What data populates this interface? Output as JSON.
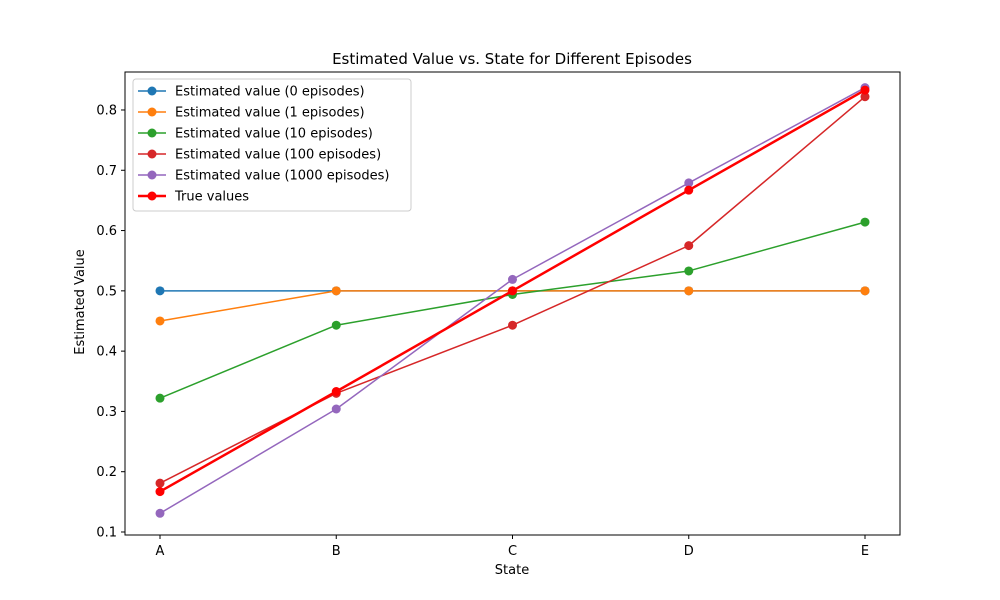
{
  "chart_data": {
    "type": "line",
    "title": "Estimated Value vs. State for Different Episodes",
    "xlabel": "State",
    "ylabel": "Estimated Value",
    "categories": [
      "A",
      "B",
      "C",
      "D",
      "E"
    ],
    "ylim": [
      0.095,
      0.863
    ],
    "yticks": [
      0.1,
      0.2,
      0.3,
      0.4,
      0.5,
      0.6,
      0.7,
      0.8
    ],
    "grid": false,
    "legend_position": "top-left",
    "series": [
      {
        "name": "Estimated value (0 episodes)",
        "color": "#1f77b4",
        "values": [
          0.5,
          0.5,
          0.5,
          0.5,
          0.5
        ],
        "linewidth": 1.5
      },
      {
        "name": "Estimated value (1 episodes)",
        "color": "#ff7f0e",
        "values": [
          0.45,
          0.5,
          0.5,
          0.5,
          0.5
        ],
        "linewidth": 1.5
      },
      {
        "name": "Estimated value (10 episodes)",
        "color": "#2ca02c",
        "values": [
          0.322,
          0.443,
          0.494,
          0.533,
          0.614
        ],
        "linewidth": 1.5
      },
      {
        "name": "Estimated value (100 episodes)",
        "color": "#d62728",
        "values": [
          0.181,
          0.33,
          0.443,
          0.575,
          0.822
        ],
        "linewidth": 1.5
      },
      {
        "name": "Estimated value (1000 episodes)",
        "color": "#9467bd",
        "values": [
          0.131,
          0.304,
          0.519,
          0.679,
          0.837
        ],
        "linewidth": 1.5
      },
      {
        "name": "True values",
        "color": "#ff0000",
        "values": [
          0.167,
          0.333,
          0.5,
          0.667,
          0.833
        ],
        "linewidth": 2.5
      }
    ]
  }
}
